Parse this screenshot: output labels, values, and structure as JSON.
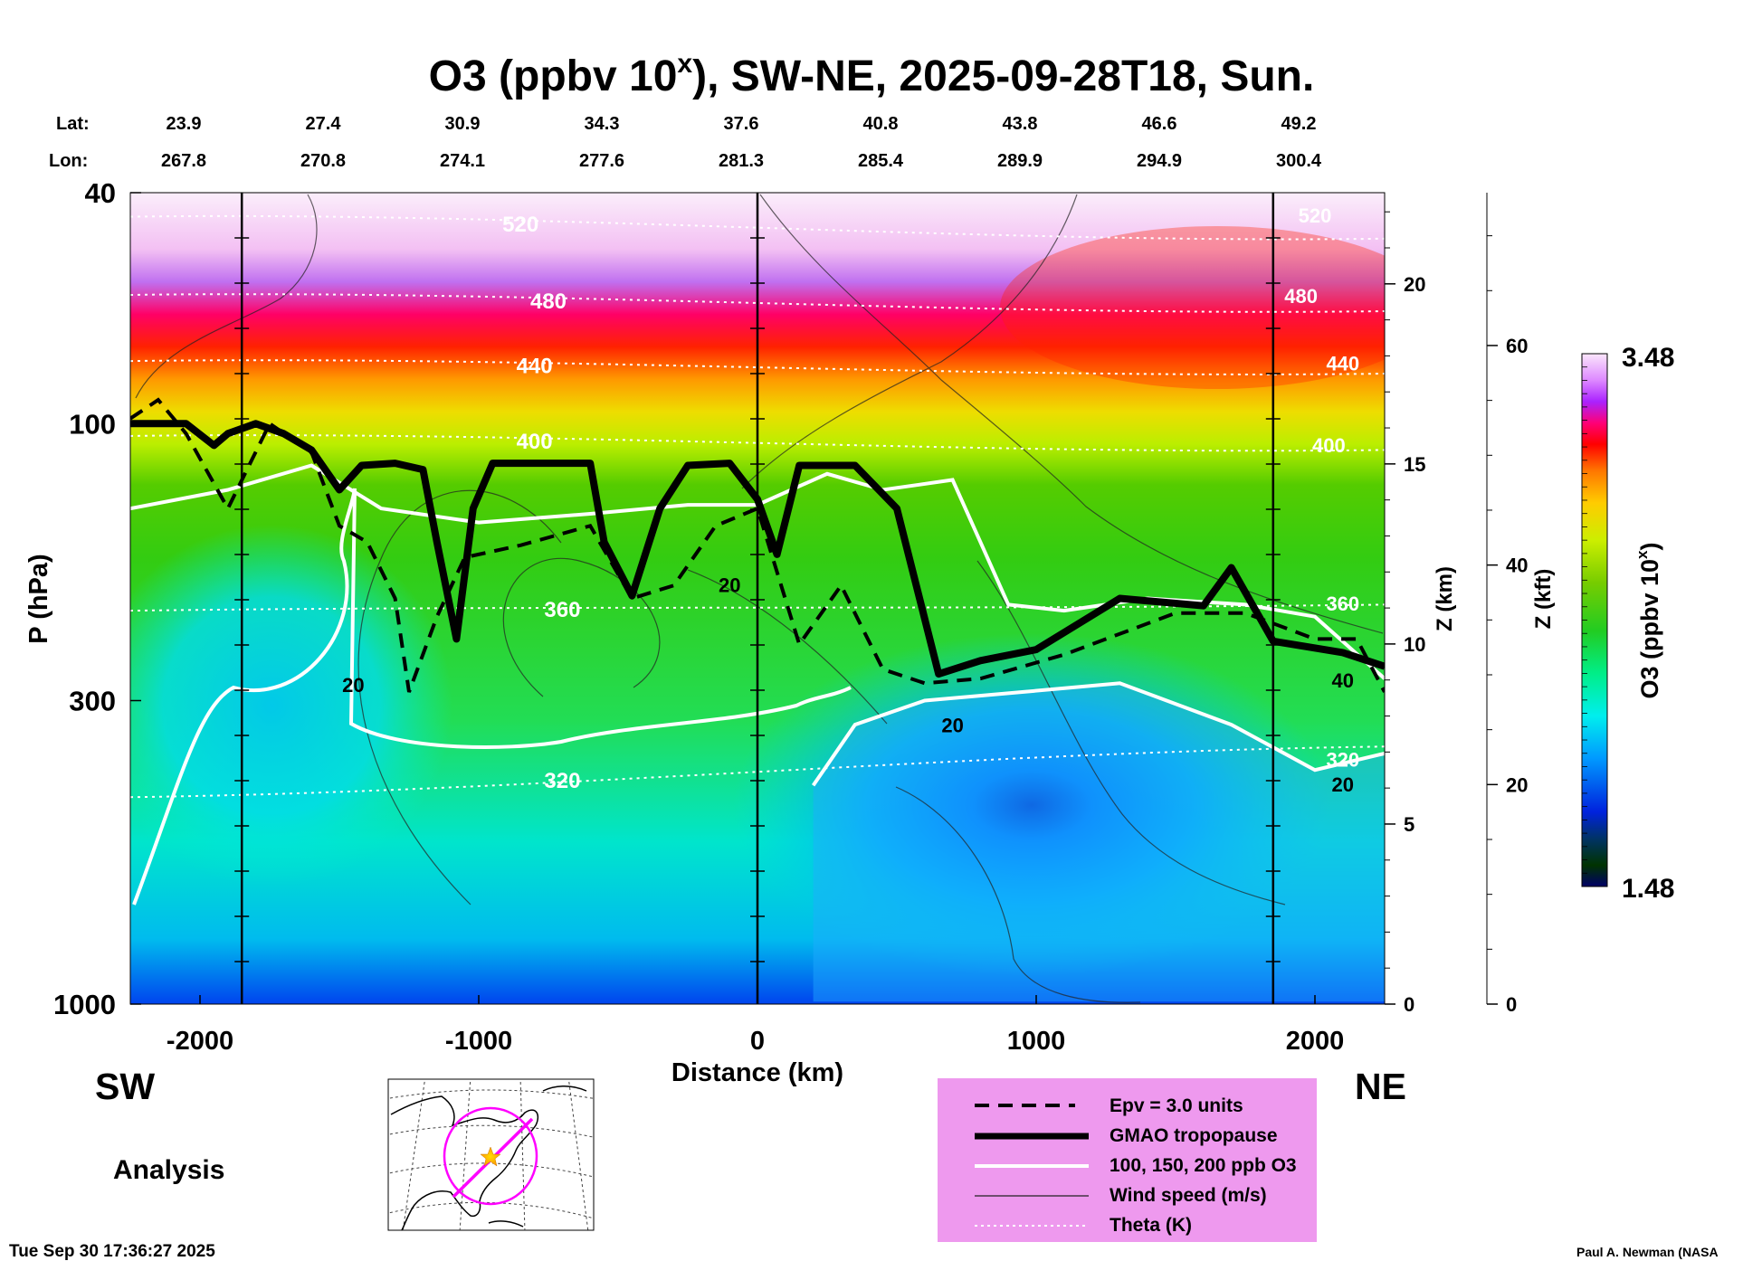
{
  "chart_data": {
    "type": "heatmap",
    "title": "O3 (ppbv 10^x), SW-NE, 2025-09-28T18, Sun.",
    "title_parts": {
      "main": "O3 (ppbv 10",
      "sup": "x",
      "rest": "), SW-NE, 2025-09-28T18, Sun."
    },
    "xlabel": "Distance (km)",
    "ylabel": "P (hPa)",
    "z_km_label": "Z (km)",
    "z_kft_label": "Z (kft)",
    "colorbar_label": "O3 (ppbv 10^x)",
    "colorbar_label_parts": {
      "main": "O3 (ppbv 10",
      "sup": "x",
      "rest": ")"
    },
    "colorbar_range": [
      1.48,
      3.48
    ],
    "colorbar_max_label": "3.48",
    "colorbar_min_label": "1.48",
    "xlim": [
      -2250,
      2250
    ],
    "ylim_hpa": [
      1000,
      40
    ],
    "x_ticks": [
      -2000,
      -1000,
      0,
      1000,
      2000
    ],
    "x_tick_labels": [
      "-2000",
      "-1000",
      "0",
      "1000",
      "2000"
    ],
    "p_ticks": [
      40,
      100,
      300,
      1000
    ],
    "p_tick_labels": [
      "40",
      "100",
      "300",
      "1000"
    ],
    "z_km_ticks": [
      0,
      5,
      10,
      15,
      20
    ],
    "z_km_tick_labels": [
      "0",
      "5",
      "10",
      "15",
      "20"
    ],
    "z_kft_ticks": [
      0,
      20,
      40,
      60
    ],
    "z_kft_tick_labels": [
      "0",
      "20",
      "40",
      "60"
    ],
    "lat_label": "Lat:",
    "lon_label": "Lon:",
    "lat_values": [
      "23.9",
      "27.4",
      "30.9",
      "34.3",
      "37.6",
      "40.8",
      "43.8",
      "46.6",
      "49.2"
    ],
    "lon_values": [
      "267.8",
      "270.8",
      "274.1",
      "277.6",
      "281.3",
      "285.4",
      "289.9",
      "294.9",
      "300.4"
    ],
    "latlon_distances": [
      -2000,
      -1500,
      -1000,
      -500,
      0,
      500,
      1000,
      1500,
      2000
    ],
    "vertical_marker_distances": [
      -1850,
      0,
      1850
    ],
    "tropopause": [
      {
        "d": -2250,
        "p": 100
      },
      {
        "d": -2050,
        "p": 100
      },
      {
        "d": -1950,
        "p": 109
      },
      {
        "d": -1900,
        "p": 104
      },
      {
        "d": -1800,
        "p": 100
      },
      {
        "d": -1700,
        "p": 104
      },
      {
        "d": -1600,
        "p": 111
      },
      {
        "d": -1500,
        "p": 130
      },
      {
        "d": -1420,
        "p": 118
      },
      {
        "d": -1300,
        "p": 117
      },
      {
        "d": -1200,
        "p": 120
      },
      {
        "d": -1150,
        "p": 160
      },
      {
        "d": -1080,
        "p": 235
      },
      {
        "d": -1020,
        "p": 140
      },
      {
        "d": -950,
        "p": 117
      },
      {
        "d": -600,
        "p": 117
      },
      {
        "d": -550,
        "p": 160
      },
      {
        "d": -450,
        "p": 198
      },
      {
        "d": -350,
        "p": 140
      },
      {
        "d": -250,
        "p": 118
      },
      {
        "d": -100,
        "p": 117
      },
      {
        "d": 0,
        "p": 135
      },
      {
        "d": 70,
        "p": 168
      },
      {
        "d": 150,
        "p": 118
      },
      {
        "d": 350,
        "p": 118
      },
      {
        "d": 500,
        "p": 140
      },
      {
        "d": 650,
        "p": 270
      },
      {
        "d": 800,
        "p": 256
      },
      {
        "d": 1000,
        "p": 245
      },
      {
        "d": 1300,
        "p": 200
      },
      {
        "d": 1600,
        "p": 206
      },
      {
        "d": 1700,
        "p": 177
      },
      {
        "d": 1850,
        "p": 237
      },
      {
        "d": 2100,
        "p": 248
      },
      {
        "d": 2250,
        "p": 262
      }
    ],
    "epv_3_line": [
      {
        "d": -2250,
        "p": 98
      },
      {
        "d": -2150,
        "p": 91
      },
      {
        "d": -2050,
        "p": 104
      },
      {
        "d": -1900,
        "p": 140
      },
      {
        "d": -1750,
        "p": 100
      },
      {
        "d": -1600,
        "p": 112
      },
      {
        "d": -1500,
        "p": 150
      },
      {
        "d": -1400,
        "p": 160
      },
      {
        "d": -1300,
        "p": 200
      },
      {
        "d": -1250,
        "p": 290
      },
      {
        "d": -1150,
        "p": 215
      },
      {
        "d": -1050,
        "p": 170
      },
      {
        "d": -850,
        "p": 162
      },
      {
        "d": -600,
        "p": 150
      },
      {
        "d": -450,
        "p": 200
      },
      {
        "d": -300,
        "p": 190
      },
      {
        "d": -150,
        "p": 150
      },
      {
        "d": 0,
        "p": 140
      },
      {
        "d": 150,
        "p": 240
      },
      {
        "d": 300,
        "p": 190
      },
      {
        "d": 450,
        "p": 265
      },
      {
        "d": 600,
        "p": 280
      },
      {
        "d": 800,
        "p": 275
      },
      {
        "d": 1100,
        "p": 250
      },
      {
        "d": 1500,
        "p": 212
      },
      {
        "d": 1750,
        "p": 212
      },
      {
        "d": 2000,
        "p": 235
      },
      {
        "d": 2150,
        "p": 235
      },
      {
        "d": 2250,
        "p": 290
      }
    ],
    "o3_100ppb_contour": [
      {
        "d": -2250,
        "p": 140
      },
      {
        "d": -1900,
        "p": 130
      },
      {
        "d": -1600,
        "p": 118
      },
      {
        "d": -1350,
        "p": 140
      },
      {
        "d": -1000,
        "p": 148
      },
      {
        "d": -600,
        "p": 143
      },
      {
        "d": -250,
        "p": 138
      },
      {
        "d": 0,
        "p": 138
      },
      {
        "d": 250,
        "p": 122
      },
      {
        "d": 450,
        "p": 130
      },
      {
        "d": 700,
        "p": 125
      },
      {
        "d": 800,
        "p": 160
      },
      {
        "d": 900,
        "p": 205
      },
      {
        "d": 1100,
        "p": 210
      },
      {
        "d": 1400,
        "p": 200
      },
      {
        "d": 1750,
        "p": 205
      },
      {
        "d": 2000,
        "p": 215
      },
      {
        "d": 2250,
        "p": 275
      }
    ],
    "o3_20ppb_region": [
      {
        "d": 200,
        "p": 420
      },
      {
        "d": 350,
        "p": 330
      },
      {
        "d": 600,
        "p": 300
      },
      {
        "d": 950,
        "p": 290
      },
      {
        "d": 1300,
        "p": 280
      },
      {
        "d": 1700,
        "p": 330
      },
      {
        "d": 2000,
        "p": 395
      },
      {
        "d": 2250,
        "p": 370
      },
      {
        "d": 2250,
        "p": 990
      },
      {
        "d": 200,
        "p": 990
      }
    ],
    "theta_levels": [
      {
        "label": "320",
        "p_west": 440,
        "p_east": 360,
        "label_d": -700
      },
      {
        "label": "360",
        "p_west": 210,
        "p_east": 205,
        "label_d": -700
      },
      {
        "label": "400",
        "p_west": 105,
        "p_east": 111,
        "label_d": -800
      },
      {
        "label": "440",
        "p_west": 78,
        "p_east": 82,
        "label_d": -800
      },
      {
        "label": "480",
        "p_west": 60,
        "p_east": 64,
        "label_d": -750
      },
      {
        "label": "520",
        "p_west": 44,
        "p_east": 48,
        "label_d": -850
      }
    ],
    "contour_labels": [
      {
        "text": "20",
        "d": -1450,
        "p": 290
      },
      {
        "text": "20",
        "d": -100,
        "p": 195
      },
      {
        "text": "20",
        "d": 700,
        "p": 340
      },
      {
        "text": "40",
        "d": 2100,
        "p": 285
      },
      {
        "text": "20",
        "d": 2100,
        "p": 430
      },
      {
        "text": "320",
        "d": 2100,
        "p": 390
      },
      {
        "text": "360",
        "d": 2100,
        "p": 210
      },
      {
        "text": "400",
        "d": 2050,
        "p": 112
      },
      {
        "text": "440",
        "d": 2100,
        "p": 81
      },
      {
        "text": "480",
        "d": 1950,
        "p": 62
      },
      {
        "text": "520",
        "d": 2000,
        "p": 45
      }
    ]
  },
  "figure": {
    "sw_label": "SW",
    "ne_label": "NE",
    "analysis_label": "Analysis",
    "timestamp": "Tue Sep 30 17:36:27 2025",
    "author": "Paul A. Newman (NASA",
    "legend": [
      {
        "style": "dashed",
        "label": "Epv = 3.0 units"
      },
      {
        "style": "thick",
        "label": "GMAO tropopause"
      },
      {
        "style": "white",
        "label": "100, 150, 200 ppb O3"
      },
      {
        "style": "thin",
        "label": "Wind speed (m/s)"
      },
      {
        "style": "dotted",
        "label": "Theta (K)"
      }
    ],
    "colors": {
      "legend_bg": "#ee99ee",
      "path_color": "#ff00ff",
      "star_color": "#ffbb00"
    }
  }
}
